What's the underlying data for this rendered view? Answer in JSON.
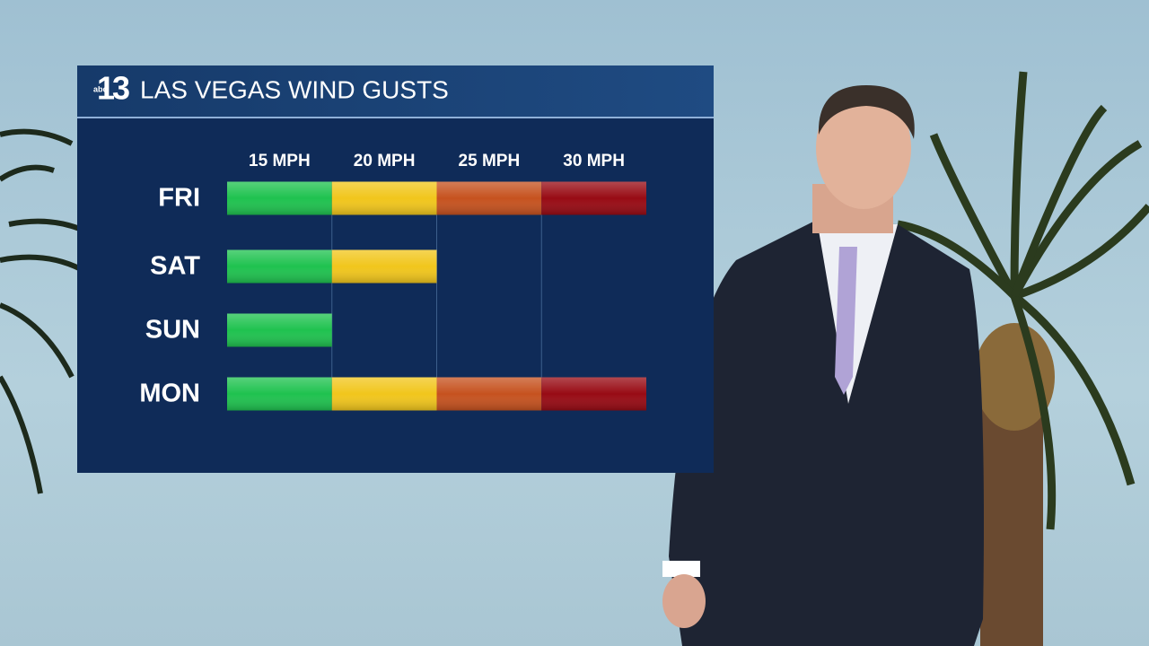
{
  "logo": {
    "network": "abc",
    "channel": "13"
  },
  "chart_data": {
    "type": "bar",
    "orientation": "horizontal",
    "title": "LAS VEGAS WIND GUSTS",
    "categories": [
      "FRI",
      "SAT",
      "SUN",
      "MON"
    ],
    "values": [
      30,
      20,
      15,
      30
    ],
    "xlim": [
      10,
      30
    ],
    "xticks": [
      {
        "value": 15,
        "label": "15 MPH"
      },
      {
        "value": 20,
        "label": "20 MPH"
      },
      {
        "value": 25,
        "label": "25 MPH"
      },
      {
        "value": 30,
        "label": "30 MPH"
      }
    ],
    "band_colors": [
      "#1fc24f",
      "#f1c61c",
      "#c6521f",
      "#980b14"
    ],
    "grid": true
  }
}
